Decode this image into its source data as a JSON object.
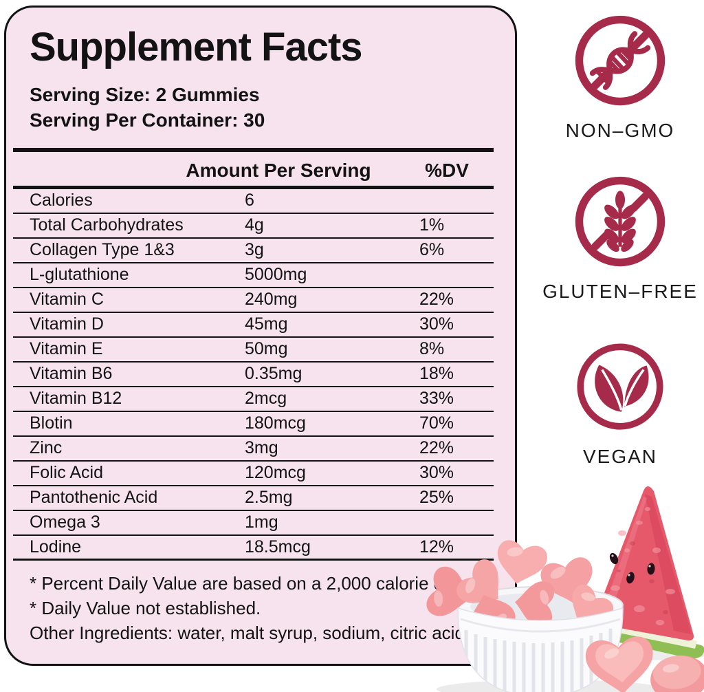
{
  "panel": {
    "title": "Supplement Facts",
    "serving_size": "Serving Size: 2 Gummies",
    "serving_per_container": "Serving Per Container: 30",
    "table": {
      "headers": {
        "amount": "Amount Per Serving",
        "dv": "%DV"
      },
      "rows": [
        {
          "name": "Calories",
          "amount": "6",
          "dv": ""
        },
        {
          "name": "Total Carbohydrates",
          "amount": "4g",
          "dv": "1%"
        },
        {
          "name": "Collagen Type 1&3",
          "amount": "3g",
          "dv": "6%"
        },
        {
          "name": "L-glutathione",
          "amount": "5000mg",
          "dv": ""
        },
        {
          "name": "Vitamin C",
          "amount": "240mg",
          "dv": "22%"
        },
        {
          "name": "Vitamin D",
          "amount": "45mg",
          "dv": "30%"
        },
        {
          "name": "Vitamin E",
          "amount": "50mg",
          "dv": "8%"
        },
        {
          "name": "Vitamin B6",
          "amount": "0.35mg",
          "dv": "18%"
        },
        {
          "name": "Vitamin B12",
          "amount": "2mcg",
          "dv": "33%"
        },
        {
          "name": "Blotin",
          "amount": "180mcg",
          "dv": "70%"
        },
        {
          "name": "Zinc",
          "amount": "3mg",
          "dv": "22%"
        },
        {
          "name": "Folic Acid",
          "amount": "120mcg",
          "dv": "30%"
        },
        {
          "name": "Pantothenic Acid",
          "amount": "2.5mg",
          "dv": "25%"
        },
        {
          "name": "Omega 3",
          "amount": "1mg",
          "dv": ""
        },
        {
          "name": "Lodine",
          "amount": "18.5mcg",
          "dv": "12%"
        }
      ]
    },
    "footnotes": [
      "* Percent Daily Value are based on a 2,000 calorie diet.",
      "* Daily Value not established.",
      "Other Ingredients: water, malt syrup, sodium, citric acid."
    ]
  },
  "badges": [
    {
      "label": "NON–GMO",
      "icon": "non-gmo-icon"
    },
    {
      "label": "GLUTEN–FREE",
      "icon": "gluten-free-icon"
    },
    {
      "label": "VEGAN",
      "icon": "vegan-icon"
    }
  ],
  "illustration": {
    "items": [
      "watermelon-wedge",
      "gummy-hearts",
      "white-ramekin-bowl"
    ]
  },
  "colors": {
    "accent_crimson": "#a62a49",
    "panel_pink": "#f6e3ee",
    "ink": "#131313",
    "gummy_pink": "#f6a3a5",
    "watermelon_red": "#e5596a",
    "rind_green": "#8fbf54"
  }
}
